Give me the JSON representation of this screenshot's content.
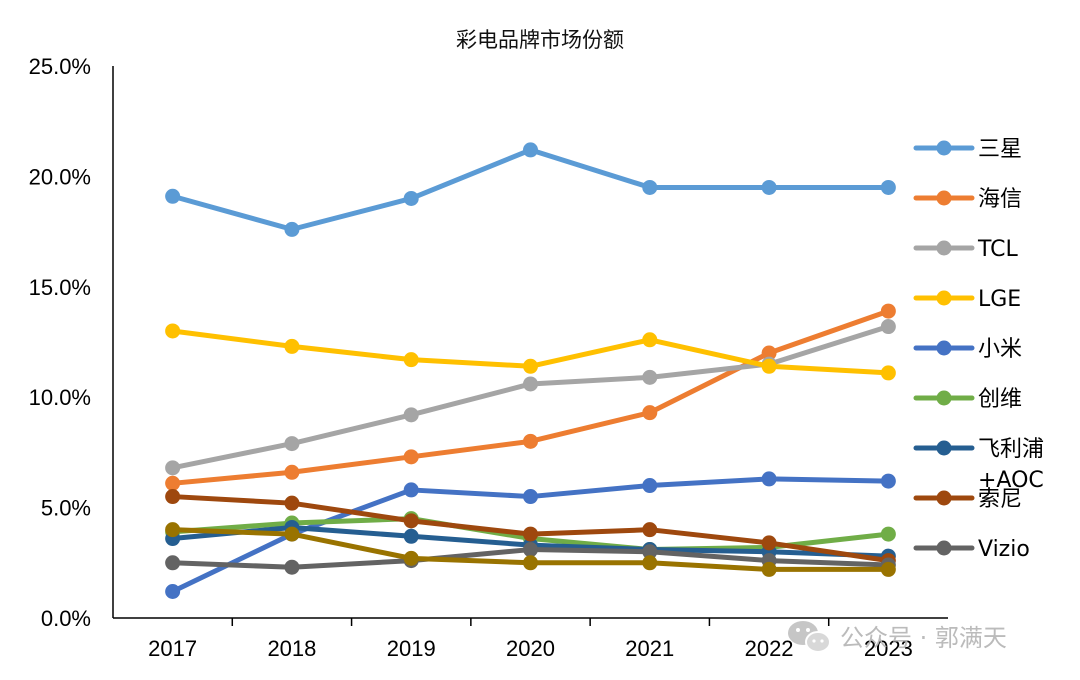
{
  "chart_data": {
    "type": "line",
    "title": "彩电品牌市场份额",
    "xlabel": "",
    "ylabel": "",
    "ylim": [
      0,
      25
    ],
    "yticks": [
      "0.0%",
      "5.0%",
      "10.0%",
      "15.0%",
      "20.0%",
      "25.0%"
    ],
    "categories": [
      "2017",
      "2018",
      "2019",
      "2020",
      "2021",
      "2022",
      "2023"
    ],
    "legend_position": "right",
    "grid": false,
    "series": [
      {
        "name": "三星",
        "color": "#5B9BD5",
        "values": [
          19.1,
          17.6,
          19.0,
          21.2,
          19.5,
          19.5,
          19.5
        ]
      },
      {
        "name": "海信",
        "color": "#ED7D31",
        "values": [
          6.1,
          6.6,
          7.3,
          8.0,
          9.3,
          12.0,
          13.9
        ]
      },
      {
        "name": "TCL",
        "color": "#A5A5A5",
        "values": [
          6.8,
          7.9,
          9.2,
          10.6,
          10.9,
          11.5,
          13.2
        ]
      },
      {
        "name": "LGE",
        "color": "#FFC000",
        "values": [
          13.0,
          12.3,
          11.7,
          11.4,
          12.6,
          11.4,
          11.1
        ]
      },
      {
        "name": "小米",
        "color": "#4472C4",
        "values": [
          1.2,
          3.8,
          5.8,
          5.5,
          6.0,
          6.3,
          6.2
        ]
      },
      {
        "name": "创维",
        "color": "#70AD47",
        "values": [
          3.9,
          4.3,
          4.5,
          3.6,
          3.1,
          3.2,
          3.8
        ]
      },
      {
        "name": "飞利浦\n+AOC",
        "color": "#255E91",
        "values": [
          3.6,
          4.1,
          3.7,
          3.3,
          3.1,
          3.0,
          2.8
        ]
      },
      {
        "name": "索尼",
        "color": "#9E480E",
        "values": [
          5.5,
          5.2,
          4.4,
          3.8,
          4.0,
          3.4,
          2.6
        ]
      },
      {
        "name": "Vizio",
        "color": "#636363",
        "values": [
          2.5,
          2.3,
          2.6,
          3.1,
          3.0,
          2.6,
          2.4
        ]
      },
      {
        "color": "#997300",
        "values": [
          4.0,
          3.8,
          2.7,
          2.5,
          2.5,
          2.2,
          2.2
        ]
      }
    ]
  },
  "watermark": {
    "text": "公众号 · 郭满天",
    "icon": "wechat-icon"
  }
}
